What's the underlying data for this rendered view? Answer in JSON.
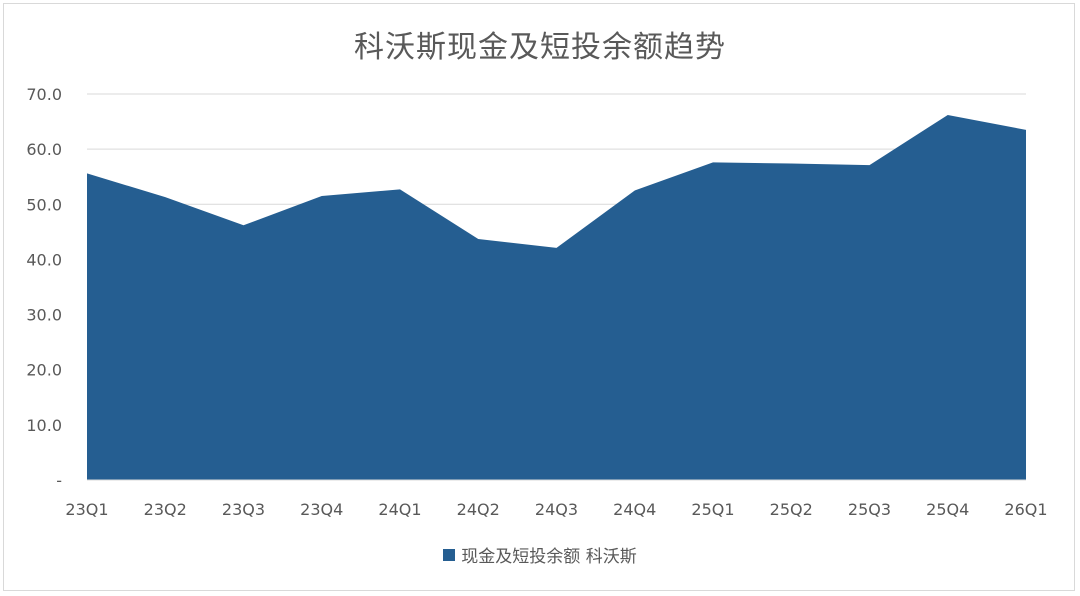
{
  "chart_data": {
    "type": "area",
    "title": "科沃斯现金及短投余额趋势",
    "xlabel": "",
    "ylabel": "",
    "categories": [
      "23Q1",
      "23Q2",
      "23Q3",
      "23Q4",
      "24Q1",
      "24Q2",
      "24Q3",
      "24Q4",
      "25Q1",
      "25Q2",
      "25Q3",
      "25Q4",
      "26Q1"
    ],
    "series": [
      {
        "name": "现金及短投余额 科沃斯",
        "values": [
          55.6,
          51.3,
          46.2,
          51.5,
          52.7,
          43.7,
          42.1,
          52.5,
          57.6,
          57.4,
          57.1,
          66.2,
          63.5
        ],
        "color": "#255e91"
      }
    ],
    "ylim": [
      0,
      70
    ],
    "yticks": [
      0,
      10,
      20,
      30,
      40,
      50,
      60,
      70
    ],
    "ytick_labels": [
      "-",
      "10.0",
      "20.0",
      "30.0",
      "40.0",
      "50.0",
      "60.0",
      "70.0"
    ],
    "grid": true,
    "legend_position": "bottom"
  }
}
